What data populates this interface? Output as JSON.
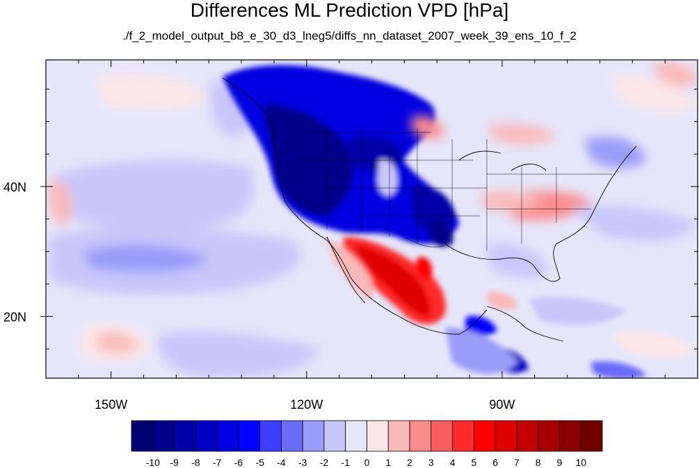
{
  "title": "Differences ML Prediction VPD [hPa]",
  "subtitle": "./f_2_model_output_b8_e_30_d3_lneg5/diffs_nn_dataset_2007_week_39_ens_10_f_2",
  "map": {
    "projection": "cylindrical-equidistant",
    "lon_range": [
      -160,
      -60
    ],
    "lat_range": [
      10.5,
      59.5
    ],
    "lon_ticks": [
      {
        "value": -150,
        "label": "150W"
      },
      {
        "value": -120,
        "label": "120W"
      },
      {
        "value": -90,
        "label": "90W"
      }
    ],
    "lat_ticks": [
      {
        "value": 40,
        "label": "40N"
      },
      {
        "value": 20,
        "label": "20N"
      }
    ],
    "background_color": "#e6e6fa"
  },
  "colorbar": {
    "levels": [
      -10,
      -9,
      -8,
      -7,
      -6,
      -5,
      -4,
      -3,
      -2,
      -1,
      0,
      1,
      2,
      3,
      4,
      5,
      6,
      7,
      8,
      9,
      10
    ],
    "labels": [
      "-10",
      "-9",
      "-8",
      "-7",
      "-6",
      "-5",
      "-4",
      "-3",
      "-2",
      "-1",
      "0",
      "1",
      "2",
      "3",
      "4",
      "5",
      "6",
      "7",
      "8",
      "9",
      "10"
    ],
    "colors": [
      "#000070",
      "#00008a",
      "#0000a8",
      "#0000c4",
      "#0000e0",
      "#0000ff",
      "#3d3dff",
      "#6b6bfa",
      "#9b9bfa",
      "#c7c7fa",
      "#e6e6fa",
      "#fde6e6",
      "#fab9b9",
      "#fa8c8c",
      "#fa5f5f",
      "#ff2b2b",
      "#ff0000",
      "#e00000",
      "#c40000",
      "#a80000",
      "#8a0000",
      "#700000"
    ]
  }
}
